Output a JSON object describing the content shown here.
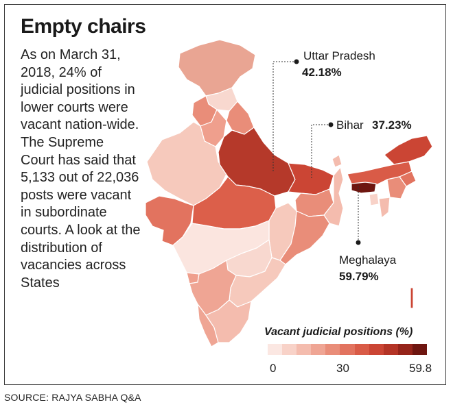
{
  "title": "Empty chairs",
  "intro": "As on March 31, 2018, 24% of judicial positions in lower courts were vacant nation-wide. The Supreme Court has said that 5,133 out of 22,036 posts were vacant in subordinate courts. A look at the distribution of vacancies across States",
  "callouts": {
    "up": {
      "name": "Uttar Pradesh",
      "value": "42.18%"
    },
    "bihar": {
      "name": "Bihar",
      "value": "37.23%"
    },
    "meghalaya": {
      "name": "Meghalaya",
      "value": "59.79%"
    }
  },
  "legend": {
    "title": "Vacant judicial positions (%)",
    "min_label": "0",
    "mid_label": "30",
    "max_label": "59.8",
    "range": [
      0,
      59.8
    ],
    "colors": [
      "#fbe7e2",
      "#f8d2c8",
      "#f4bcae",
      "#efa594",
      "#e98d79",
      "#e2735f",
      "#d95b47",
      "#cb4534",
      "#b43426",
      "#95241a",
      "#6e1610"
    ]
  },
  "colors": {
    "state_stroke": "#ffffff",
    "callout_line": "#333333"
  },
  "source": "SOURCE: RAJYA SABHA Q&A"
}
